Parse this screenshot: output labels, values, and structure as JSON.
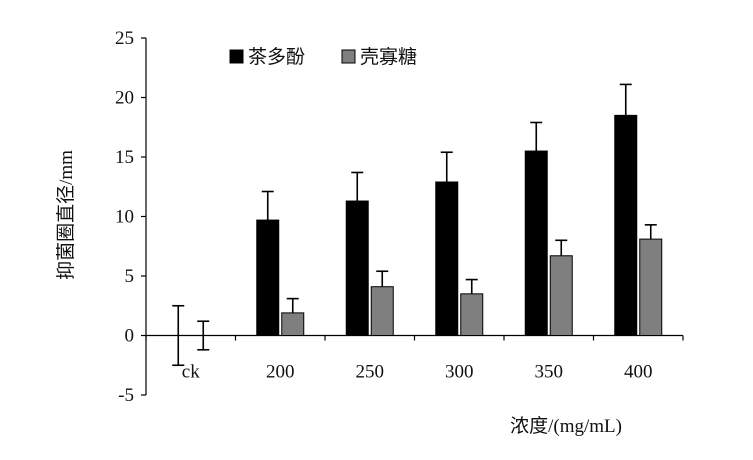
{
  "chart_data": {
    "type": "bar",
    "categories": [
      "ck",
      "200",
      "250",
      "300",
      "350",
      "400"
    ],
    "series": [
      {
        "name": "茶多酚",
        "color": "#000000",
        "values": [
          0,
          9.7,
          11.3,
          12.9,
          15.5,
          18.5
        ],
        "errors": [
          2.5,
          2.4,
          2.4,
          2.5,
          2.4,
          2.6
        ]
      },
      {
        "name": "壳寡糖",
        "color": "#7f7f7f",
        "values": [
          0,
          1.9,
          4.1,
          3.5,
          6.7,
          8.1
        ],
        "errors": [
          1.2,
          1.2,
          1.3,
          1.2,
          1.3,
          1.2
        ]
      }
    ],
    "xlabel": "浓度/(mg/mL)",
    "ylabel": "抑菌圈直径/mm",
    "ylim": [
      -5,
      25
    ],
    "yticks": [
      -5,
      0,
      5,
      10,
      15,
      20,
      25
    ],
    "grid": false,
    "legend_position": "top-left"
  }
}
